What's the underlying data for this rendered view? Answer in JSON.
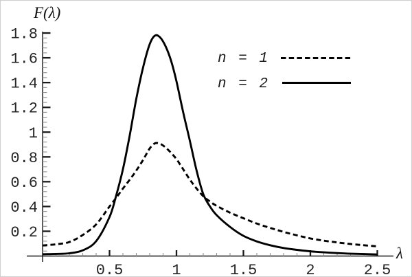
{
  "chart_data": {
    "type": "line",
    "title": "",
    "xlabel": "λ",
    "ylabel": "F(λ)",
    "xlim": [
      0,
      2.62
    ],
    "ylim": [
      0,
      1.86
    ],
    "grid": false,
    "legend_position": "upper-right-inside",
    "background": "#ffffff",
    "line_color": "#000000",
    "x_axis": {
      "major_ticks": [
        0.5,
        1,
        1.5,
        2,
        2.5
      ],
      "major_labels": [
        "0.5",
        "1",
        "1.5",
        "2",
        "2.5"
      ],
      "minor_step": 0.1
    },
    "y_axis": {
      "major_ticks": [
        0.2,
        0.4,
        0.6,
        0.8,
        1,
        1.2,
        1.4,
        1.6,
        1.8
      ],
      "major_labels": [
        "0.2",
        "0.4",
        "0.6",
        "0.8",
        "1",
        "1.2",
        "1.4",
        "1.6",
        "1.8"
      ],
      "minor_step": 0.04
    },
    "series": [
      {
        "name": "n = 1",
        "line_style": "dashed",
        "color": "#000000",
        "peak": {
          "x": 0.84,
          "y": 0.91
        },
        "x": [
          0,
          0.1,
          0.2,
          0.3,
          0.4,
          0.5,
          0.55,
          0.6,
          0.65,
          0.7,
          0.75,
          0.8,
          0.84,
          0.88,
          0.92,
          0.96,
          1.0,
          1.05,
          1.1,
          1.15,
          1.2,
          1.25,
          1.3,
          1.4,
          1.5,
          1.6,
          1.7,
          1.8,
          1.9,
          2.0,
          2.1,
          2.2,
          2.3,
          2.4,
          2.5
        ],
        "y": [
          0.085,
          0.095,
          0.113,
          0.17,
          0.255,
          0.4,
          0.47,
          0.545,
          0.615,
          0.69,
          0.775,
          0.868,
          0.91,
          0.905,
          0.875,
          0.832,
          0.782,
          0.7,
          0.617,
          0.545,
          0.483,
          0.44,
          0.405,
          0.35,
          0.305,
          0.262,
          0.227,
          0.195,
          0.167,
          0.142,
          0.124,
          0.11,
          0.097,
          0.087,
          0.078
        ]
      },
      {
        "name": "n = 2",
        "line_style": "solid",
        "color": "#000000",
        "peak": {
          "x": 0.84,
          "y": 1.78
        },
        "x": [
          0,
          0.1,
          0.2,
          0.3,
          0.4,
          0.5,
          0.55,
          0.6,
          0.65,
          0.7,
          0.75,
          0.8,
          0.84,
          0.88,
          0.92,
          0.96,
          1.0,
          1.05,
          1.1,
          1.15,
          1.2,
          1.25,
          1.3,
          1.4,
          1.5,
          1.6,
          1.7,
          1.8,
          1.9,
          2.0,
          2.1,
          2.2,
          2.3,
          2.4,
          2.5
        ],
        "y": [
          0.015,
          0.017,
          0.022,
          0.046,
          0.12,
          0.315,
          0.49,
          0.7,
          0.97,
          1.27,
          1.52,
          1.71,
          1.78,
          1.762,
          1.69,
          1.575,
          1.41,
          1.16,
          0.93,
          0.69,
          0.5,
          0.4,
          0.33,
          0.235,
          0.163,
          0.118,
          0.087,
          0.065,
          0.05,
          0.038,
          0.03,
          0.024,
          0.019,
          0.016,
          0.013
        ]
      }
    ]
  }
}
